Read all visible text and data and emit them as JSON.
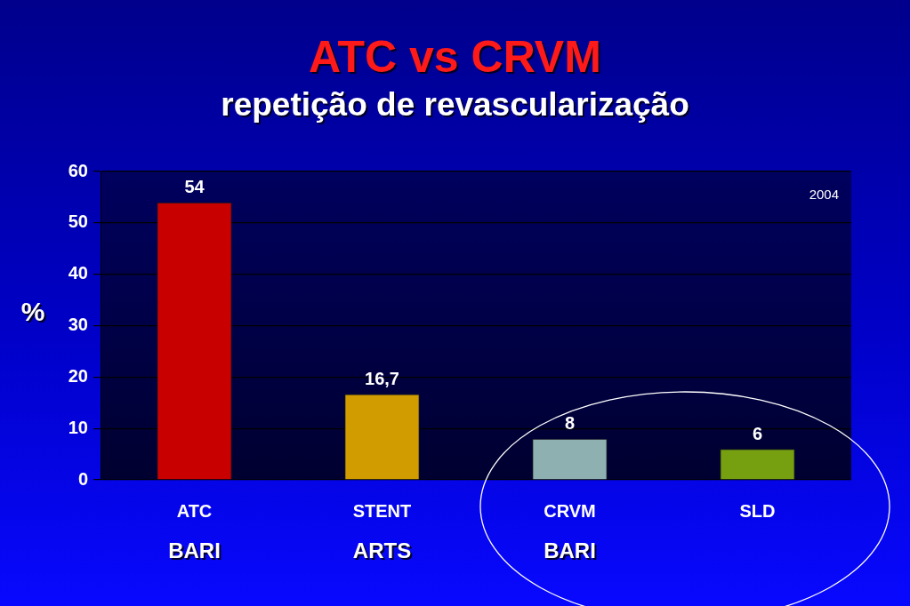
{
  "chart_data": {
    "type": "bar",
    "title": "ATC vs CRVM",
    "subtitle": "repetição de revascularização",
    "ylabel": "%",
    "categories": [
      "ATC\nBARI",
      "STENT\nARTS",
      "CRVM\nBARI",
      "SLD"
    ],
    "values": [
      54,
      16.7,
      8,
      6
    ],
    "colors": [
      "#c80000",
      "#d09c00",
      "#8fb0b0",
      "#76a010"
    ],
    "value_labels": [
      "54",
      "16,7",
      "8",
      "6"
    ],
    "ylim": [
      0,
      60
    ],
    "yticks": [
      0,
      10,
      20,
      30,
      40,
      50,
      60
    ],
    "grid": "y",
    "annotations": [
      "2004"
    ]
  }
}
